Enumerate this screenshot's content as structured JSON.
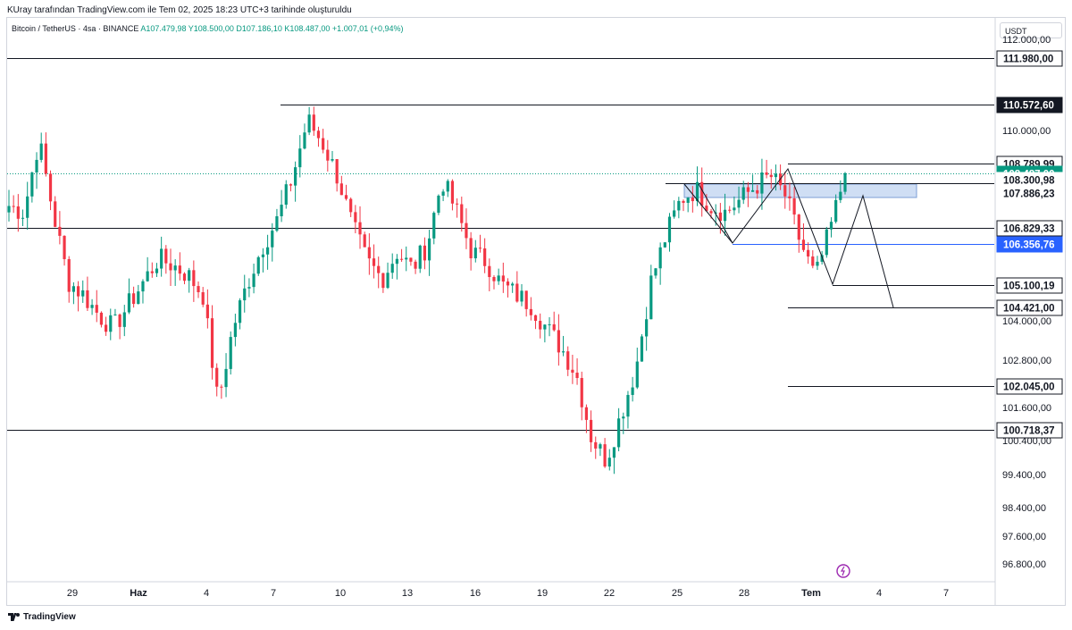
{
  "header": {
    "attribution": "KUray tarafından TradingView.com ile Tem 02, 2025 18:23 UTC+3 tarihinde oluşturuldu",
    "symbol": "Bitcoin / TetherUS · 4sa · BINANCE",
    "ohlc": "A107.479,98 Y108.500,00 D107.186,10 K108.487,00 +1.007,01 (+0,94%)",
    "currency": "USDT"
  },
  "footer": {
    "brand": "TradingView"
  },
  "chart_data": {
    "type": "candlestick",
    "title": "",
    "ylim": [
      96200,
      114000
    ],
    "x_ticks": [
      "29",
      "Haz",
      "4",
      "7",
      "10",
      "13",
      "16",
      "19",
      "22",
      "25",
      "28",
      "Tem",
      "4",
      "7"
    ],
    "y_ticks": [
      "96.800,00",
      "97.600,00",
      "98.400,00",
      "99.400,00",
      "100.400,00",
      "101.600,00",
      "102.800,00",
      "104.000,00",
      "110.000,00",
      "111.000,00",
      "112.000,00"
    ],
    "price_labels": [
      {
        "text": "111.980,00",
        "value": 111980,
        "color": "#131722",
        "bg": "#ffffff",
        "boxed": true
      },
      {
        "text": "110.572,60",
        "value": 110572.6,
        "color": "#ffffff",
        "bg": "#131722"
      },
      {
        "text": "108.789,99",
        "value": 108789.99,
        "color": "#131722",
        "bg": "#ffffff",
        "boxed": true
      },
      {
        "text": "108.487,00",
        "sub": "36:07",
        "value": 108487,
        "color": "#ffffff",
        "bg": "#089981"
      },
      {
        "text": "108.300,98",
        "value": 108300.98,
        "color": "#131722",
        "bg": "#ffffff"
      },
      {
        "text": "107.886,23",
        "value": 107886.23,
        "color": "#131722",
        "bg": "#ffffff"
      },
      {
        "text": "106.829,33",
        "value": 106829.33,
        "color": "#131722",
        "bg": "#ffffff",
        "boxed": true
      },
      {
        "text": "106.356,76",
        "value": 106356.76,
        "color": "#ffffff",
        "bg": "#2962ff"
      },
      {
        "text": "105.100,19",
        "value": 105100.19,
        "color": "#131722",
        "bg": "#ffffff",
        "boxed": true
      },
      {
        "text": "104.421,00",
        "value": 104421,
        "color": "#131722",
        "bg": "#ffffff",
        "boxed": true
      },
      {
        "text": "102.045,00",
        "value": 102045,
        "color": "#131722",
        "bg": "#ffffff",
        "boxed": true
      },
      {
        "text": "100.718,37",
        "value": 100718.37,
        "color": "#131722",
        "bg": "#ffffff",
        "boxed": true
      }
    ],
    "horizontal_levels": [
      111980,
      110572.6,
      108789.99,
      106829.33,
      106356.76,
      105100.19,
      104421,
      102045,
      100718.37
    ],
    "close_path": [
      107500,
      107300,
      109500,
      107200,
      105200,
      104800,
      104200,
      103800,
      104500,
      105200,
      105900,
      105700,
      105400,
      104800,
      101500,
      103800,
      105200,
      106300,
      107100,
      108400,
      110100,
      109400,
      108400,
      106900,
      105800,
      105300,
      106100,
      105600,
      106300,
      108300,
      107300,
      106100,
      105800,
      105100,
      104800,
      104500,
      103800,
      103200,
      102400,
      100500,
      99800,
      101200,
      102600,
      105200,
      106600,
      107700,
      108000,
      107500,
      107300,
      107700,
      108100,
      108400,
      107800,
      106400,
      105300,
      106800,
      108487
    ],
    "colors": {
      "up": "#089981",
      "down": "#f23645"
    }
  }
}
